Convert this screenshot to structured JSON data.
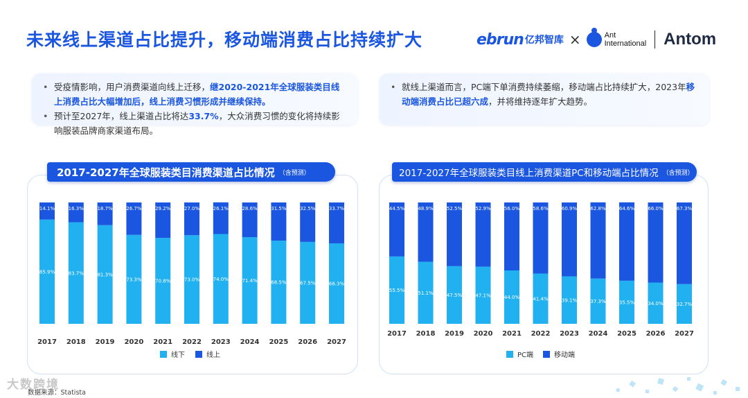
{
  "title": "未来线上渠道占比提升，移动端消费占比持续扩大",
  "logos": {
    "ebrun": "ebrun",
    "ebrun_cn": "亿邦智库",
    "times": "×",
    "ant_line1": "Ant",
    "ant_line2": "International",
    "antom": "Antom"
  },
  "notes": {
    "left": [
      {
        "plain": "受疫情影响，用户消费渠道向线上迁移，",
        "highlight": "继2020-2021年全球服装类目线上消费占比大幅增加后，线上消费习惯形成并继续保持。",
        "rest": ""
      },
      {
        "plain": "预计至2027年，线上渠道占比将达",
        "highlight": "33.7%",
        "rest": "，大众消费习惯的变化将持续影响服装品牌商家渠道布局。"
      }
    ],
    "right": [
      {
        "plain": "就线上渠道而言，PC端下单消费持续萎缩，移动端占比持续扩大，2023年",
        "highlight": "移动端消费占比已超六成",
        "rest": "，并将维持逐年扩大趋势。"
      }
    ]
  },
  "colors": {
    "light": "#21b1f1",
    "dark": "#1a56e0"
  },
  "chart_data": [
    {
      "type": "bar",
      "stacked": true,
      "percent": true,
      "title": "2017-2027年全球服装类目消费渠道占比情况",
      "subtitle": "（含预测）",
      "categories": [
        "2017",
        "2018",
        "2019",
        "2020",
        "2021",
        "2022",
        "2023",
        "2024",
        "2025",
        "2026",
        "2027"
      ],
      "series": [
        {
          "name": "线下",
          "values": [
            85.9,
            83.7,
            81.3,
            73.3,
            70.8,
            73.0,
            74.0,
            71.4,
            68.5,
            67.5,
            66.3
          ]
        },
        {
          "name": "线上",
          "values": [
            14.1,
            16.3,
            18.7,
            26.7,
            29.2,
            27.0,
            26.1,
            28.6,
            31.5,
            32.5,
            33.7
          ]
        }
      ],
      "ylim": [
        0,
        100
      ],
      "legend": "bottom"
    },
    {
      "type": "bar",
      "stacked": true,
      "percent": true,
      "title": "2017-2027年全球服装类目线上消费渠道PC和移动端占比情况",
      "subtitle": "（含预测）",
      "categories": [
        "2017",
        "2018",
        "2019",
        "2020",
        "2021",
        "2022",
        "2023",
        "2024",
        "2025",
        "2026",
        "2027"
      ],
      "series": [
        {
          "name": "PC端",
          "values": [
            55.5,
            51.1,
            47.5,
            47.1,
            44.0,
            41.4,
            39.1,
            37.3,
            35.5,
            34.0,
            32.7
          ]
        },
        {
          "name": "移动端",
          "values": [
            44.5,
            48.9,
            52.5,
            52.9,
            56.0,
            58.6,
            60.9,
            62.8,
            64.6,
            66.0,
            67.3
          ]
        }
      ],
      "ylim": [
        0,
        100
      ],
      "legend": "bottom"
    }
  ],
  "source": "数据来源：Statista",
  "watermark": "大数跨境"
}
